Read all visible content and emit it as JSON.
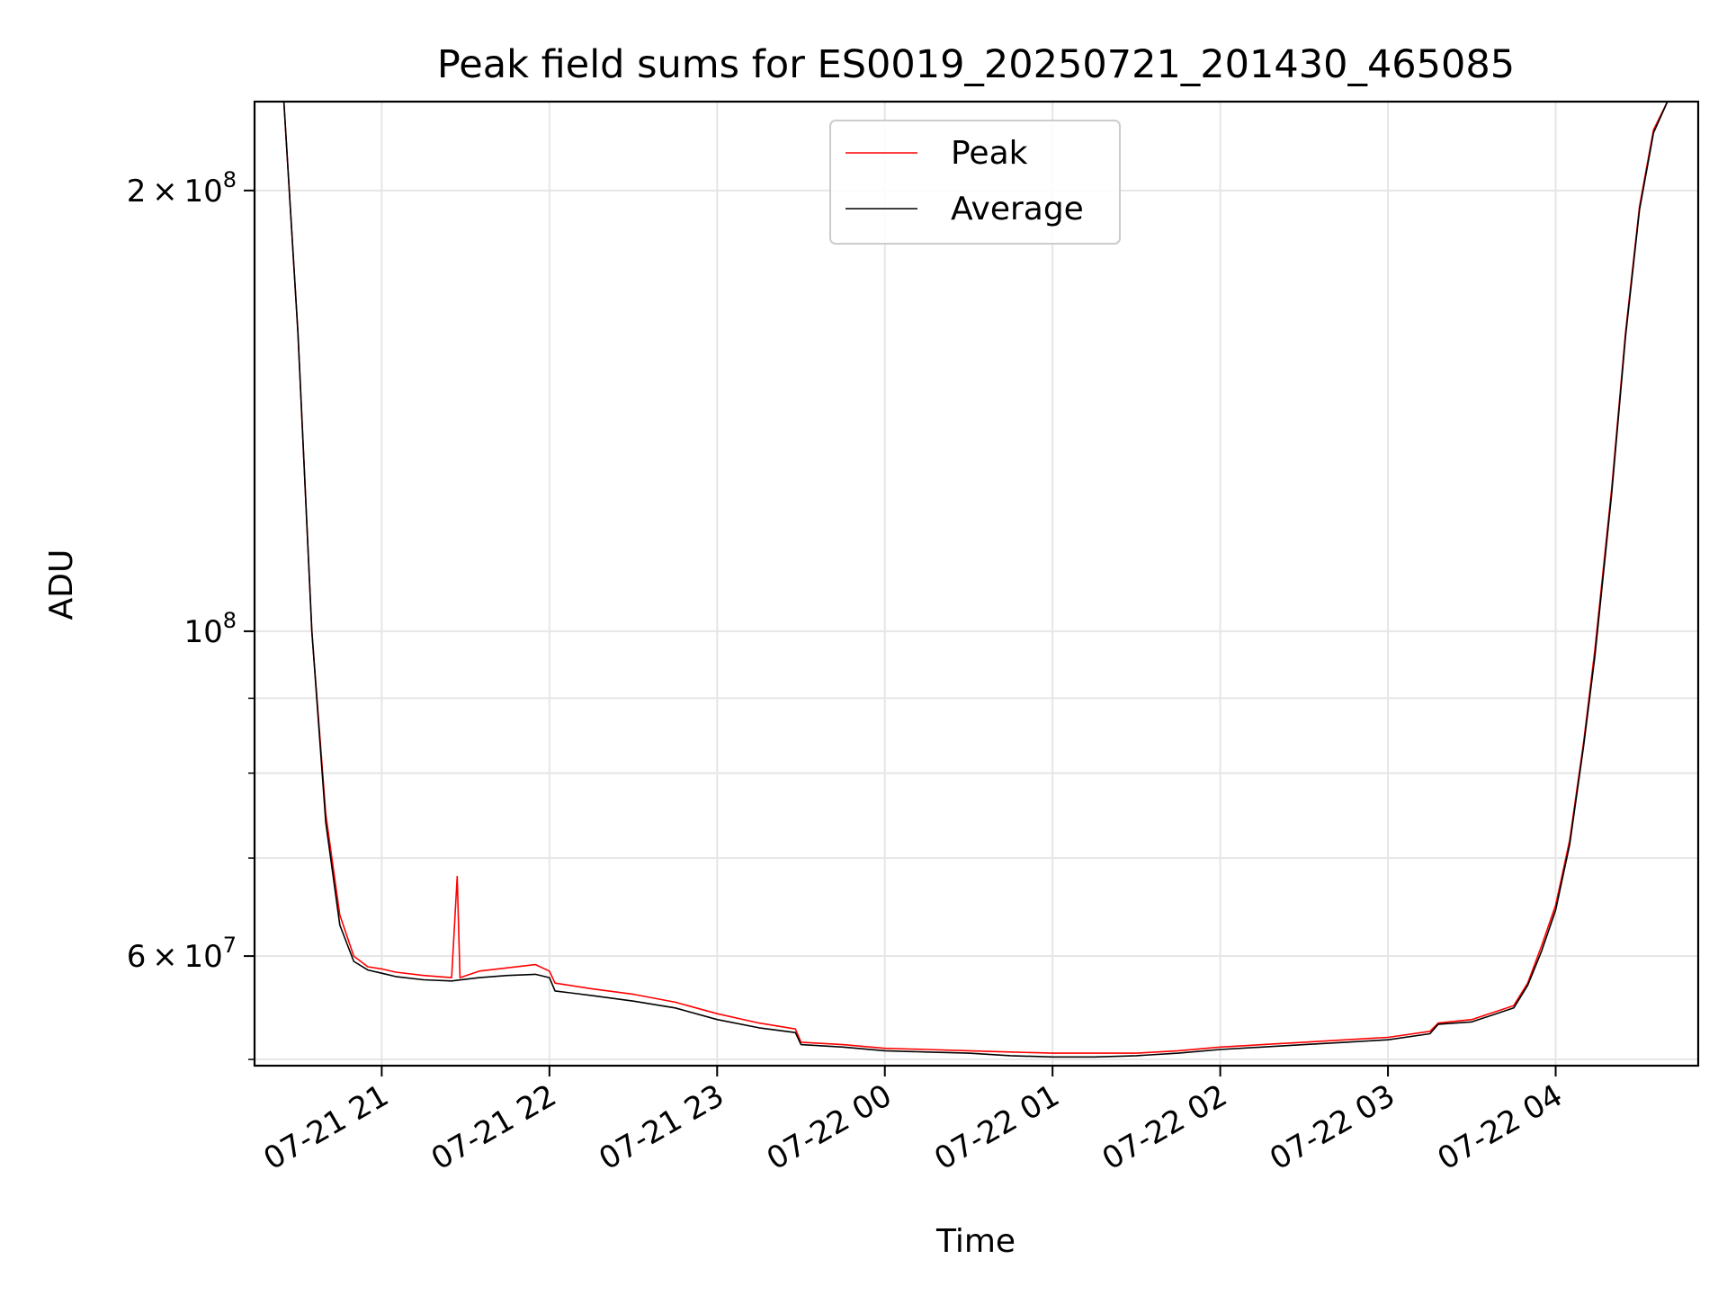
{
  "chart_data": {
    "type": "line",
    "title": "Peak field sums for ES0019_20250721_201430_465085",
    "xlabel": "Time",
    "ylabel": "ADU",
    "yscale": "log",
    "ylim": [
      50500000,
      230000000
    ],
    "xlim": [
      "2025-07-21 20:14:30",
      "2025-07-22 04:51:00"
    ],
    "grid": true,
    "legend_position": "top-center",
    "x_ticks": [
      {
        "t": "2025-07-21 21:00",
        "label": "07-21 21"
      },
      {
        "t": "2025-07-21 22:00",
        "label": "07-21 22"
      },
      {
        "t": "2025-07-21 23:00",
        "label": "07-21 23"
      },
      {
        "t": "2025-07-22 00:00",
        "label": "07-22 00"
      },
      {
        "t": "2025-07-22 01:00",
        "label": "07-22 01"
      },
      {
        "t": "2025-07-22 02:00",
        "label": "07-22 02"
      },
      {
        "t": "2025-07-22 03:00",
        "label": "07-22 03"
      },
      {
        "t": "2025-07-22 04:00",
        "label": "07-22 04"
      }
    ],
    "y_ticks": [
      {
        "v": 60000000,
        "mantissa": "6",
        "exp": "7"
      },
      {
        "v": 100000000,
        "mantissa": "",
        "exp": "8"
      },
      {
        "v": 200000000,
        "mantissa": "2",
        "exp": "8"
      }
    ],
    "y_minor_ticks": [
      51000000,
      70000000,
      80000000,
      90000000,
      300000000
    ],
    "series": [
      {
        "name": "Peak",
        "color": "#ff0000",
        "x": [
          "2025-07-21 20:14:30",
          "2025-07-21 20:25",
          "2025-07-21 20:30",
          "2025-07-21 20:35",
          "2025-07-21 20:40",
          "2025-07-21 20:45",
          "2025-07-21 20:50",
          "2025-07-21 20:55",
          "2025-07-21 21:00",
          "2025-07-21 21:05",
          "2025-07-21 21:15",
          "2025-07-21 21:25",
          "2025-07-21 21:27",
          "2025-07-21 21:28",
          "2025-07-21 21:35",
          "2025-07-21 21:45",
          "2025-07-21 21:55",
          "2025-07-21 22:00",
          "2025-07-21 22:02",
          "2025-07-21 22:15",
          "2025-07-21 22:30",
          "2025-07-21 22:45",
          "2025-07-21 23:00",
          "2025-07-21 23:15",
          "2025-07-21 23:28",
          "2025-07-21 23:30",
          "2025-07-21 23:45",
          "2025-07-22 00:00",
          "2025-07-22 00:15",
          "2025-07-22 00:30",
          "2025-07-22 00:45",
          "2025-07-22 01:00",
          "2025-07-22 01:15",
          "2025-07-22 01:30",
          "2025-07-22 01:45",
          "2025-07-22 02:00",
          "2025-07-22 02:15",
          "2025-07-22 02:30",
          "2025-07-22 02:45",
          "2025-07-22 03:00",
          "2025-07-22 03:15",
          "2025-07-22 03:18",
          "2025-07-22 03:30",
          "2025-07-22 03:45",
          "2025-07-22 03:50",
          "2025-07-22 03:55",
          "2025-07-22 04:00",
          "2025-07-22 04:05",
          "2025-07-22 04:10",
          "2025-07-22 04:14",
          "2025-07-22 04:20",
          "2025-07-22 04:25",
          "2025-07-22 04:30",
          "2025-07-22 04:35",
          "2025-07-22 04:40",
          "2025-07-22 04:45",
          "2025-07-22 04:51:00"
        ],
        "y": [
          230000000,
          230000000,
          160000000,
          100000000,
          75000000,
          64000000,
          60000000,
          59000000,
          58800000,
          58500000,
          58200000,
          58000000,
          68000000,
          58000000,
          58600000,
          58900000,
          59200000,
          58600000,
          57500000,
          57000000,
          56500000,
          55800000,
          54800000,
          54000000,
          53500000,
          52400000,
          52200000,
          51900000,
          51800000,
          51700000,
          51600000,
          51500000,
          51500000,
          51500000,
          51700000,
          52000000,
          52200000,
          52400000,
          52600000,
          52800000,
          53300000,
          54000000,
          54300000,
          55500000,
          57500000,
          61000000,
          65000000,
          72000000,
          84000000,
          97000000,
          125000000,
          160000000,
          195000000,
          220000000,
          230000000,
          230000000,
          230000000
        ]
      },
      {
        "name": "Average",
        "color": "#000000",
        "x": [
          "2025-07-21 20:14:30",
          "2025-07-21 20:25",
          "2025-07-21 20:30",
          "2025-07-21 20:35",
          "2025-07-21 20:40",
          "2025-07-21 20:45",
          "2025-07-21 20:50",
          "2025-07-21 20:55",
          "2025-07-21 21:00",
          "2025-07-21 21:05",
          "2025-07-21 21:15",
          "2025-07-21 21:25",
          "2025-07-21 21:35",
          "2025-07-21 21:45",
          "2025-07-21 21:55",
          "2025-07-21 22:00",
          "2025-07-21 22:02",
          "2025-07-21 22:15",
          "2025-07-21 22:30",
          "2025-07-21 22:45",
          "2025-07-21 23:00",
          "2025-07-21 23:15",
          "2025-07-21 23:28",
          "2025-07-21 23:30",
          "2025-07-21 23:45",
          "2025-07-22 00:00",
          "2025-07-22 00:15",
          "2025-07-22 00:30",
          "2025-07-22 00:45",
          "2025-07-22 01:00",
          "2025-07-22 01:15",
          "2025-07-22 01:30",
          "2025-07-22 01:45",
          "2025-07-22 02:00",
          "2025-07-22 02:15",
          "2025-07-22 02:30",
          "2025-07-22 02:45",
          "2025-07-22 03:00",
          "2025-07-22 03:15",
          "2025-07-22 03:18",
          "2025-07-22 03:30",
          "2025-07-22 03:45",
          "2025-07-22 03:50",
          "2025-07-22 03:55",
          "2025-07-22 04:00",
          "2025-07-22 04:05",
          "2025-07-22 04:10",
          "2025-07-22 04:14",
          "2025-07-22 04:20",
          "2025-07-22 04:25",
          "2025-07-22 04:30",
          "2025-07-22 04:35",
          "2025-07-22 04:40",
          "2025-07-22 04:45",
          "2025-07-22 04:51:00"
        ],
        "y": [
          230000000,
          230000000,
          160000000,
          100000000,
          74000000,
          63000000,
          59500000,
          58700000,
          58400000,
          58100000,
          57800000,
          57700000,
          58000000,
          58200000,
          58300000,
          58000000,
          56800000,
          56400000,
          55900000,
          55300000,
          54300000,
          53600000,
          53200000,
          52200000,
          52000000,
          51700000,
          51600000,
          51500000,
          51300000,
          51200000,
          51200000,
          51300000,
          51500000,
          51800000,
          52000000,
          52200000,
          52400000,
          52600000,
          53100000,
          53900000,
          54100000,
          55300000,
          57300000,
          60500000,
          64500000,
          71500000,
          83500000,
          96000000,
          124000000,
          159000000,
          194000000,
          219000000,
          230000000,
          230000000,
          230000000
        ]
      }
    ]
  }
}
